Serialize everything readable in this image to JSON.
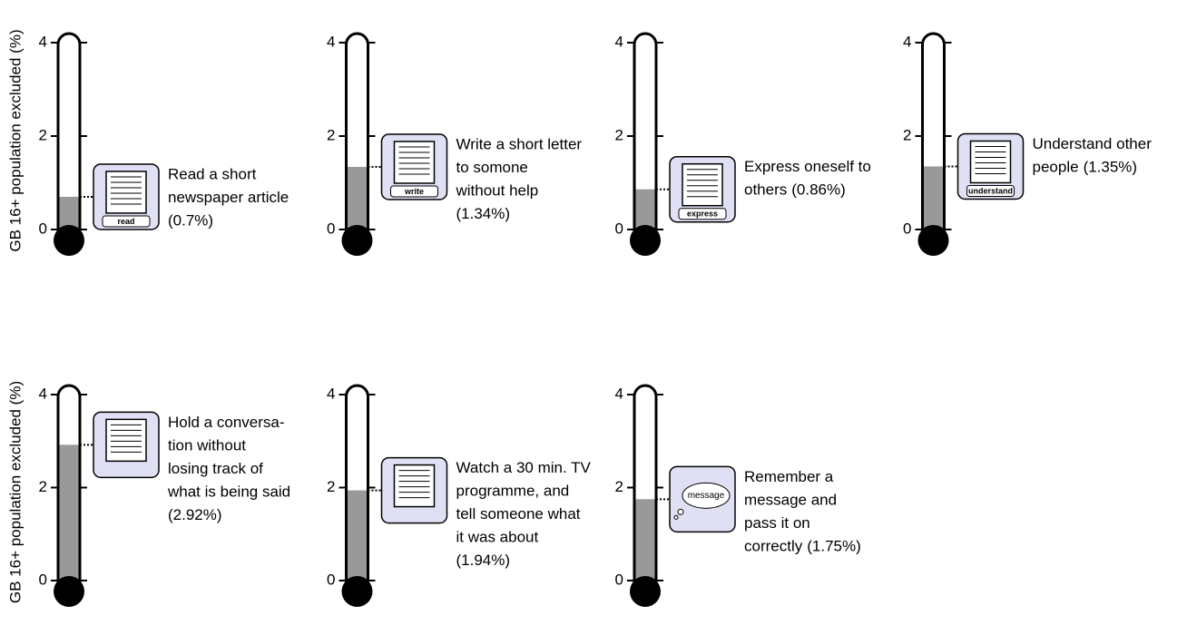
{
  "chart_data": [
    {
      "type": "thermometer",
      "y_label": "GB 16+ population excluded (%)",
      "ylim": [
        0,
        4
      ],
      "yticks": [
        0,
        2,
        4
      ],
      "icon_label": "read",
      "caption_lines": [
        "Read a short",
        "newspaper article"
      ],
      "value": 0.7,
      "value_label": "(0.7%)"
    },
    {
      "type": "thermometer",
      "ylim": [
        0,
        4
      ],
      "yticks": [
        0,
        2,
        4
      ],
      "icon_label": "write",
      "caption_lines": [
        "Write a short letter",
        "to somone",
        "without help"
      ],
      "value": 1.34,
      "value_label": "(1.34%)"
    },
    {
      "type": "thermometer",
      "ylim": [
        0,
        4
      ],
      "yticks": [
        0,
        2,
        4
      ],
      "icon_label": "express",
      "caption_lines": [
        "Express oneself to",
        "others"
      ],
      "value": 0.86,
      "value_label": "(0.86%)"
    },
    {
      "type": "thermometer",
      "ylim": [
        0,
        4
      ],
      "yticks": [
        0,
        2,
        4
      ],
      "icon_label": "understand",
      "caption_lines": [
        "Understand other",
        "people"
      ],
      "value": 1.35,
      "value_label": "(1.35%)"
    },
    {
      "type": "thermometer",
      "y_label": "GB 16+ population excluded (%)",
      "ylim": [
        0,
        4
      ],
      "yticks": [
        0,
        2,
        4
      ],
      "caption_lines": [
        "Hold a conversa-",
        "tion without",
        "losing track of",
        "what is being said"
      ],
      "value": 2.92,
      "value_label": "(2.92%)"
    },
    {
      "type": "thermometer",
      "ylim": [
        0,
        4
      ],
      "yticks": [
        0,
        2,
        4
      ],
      "caption_lines": [
        "Watch a 30 min. TV",
        "programme, and",
        "tell someone what",
        "it was about"
      ],
      "value": 1.94,
      "value_label": "(1.94%)"
    },
    {
      "type": "thermometer",
      "ylim": [
        0,
        4
      ],
      "yticks": [
        0,
        2,
        4
      ],
      "icon_label": "message",
      "caption_lines": [
        "Remember a",
        "message and",
        "pass it on",
        "correctly"
      ],
      "value": 1.75,
      "value_label": "(1.75%)"
    }
  ]
}
